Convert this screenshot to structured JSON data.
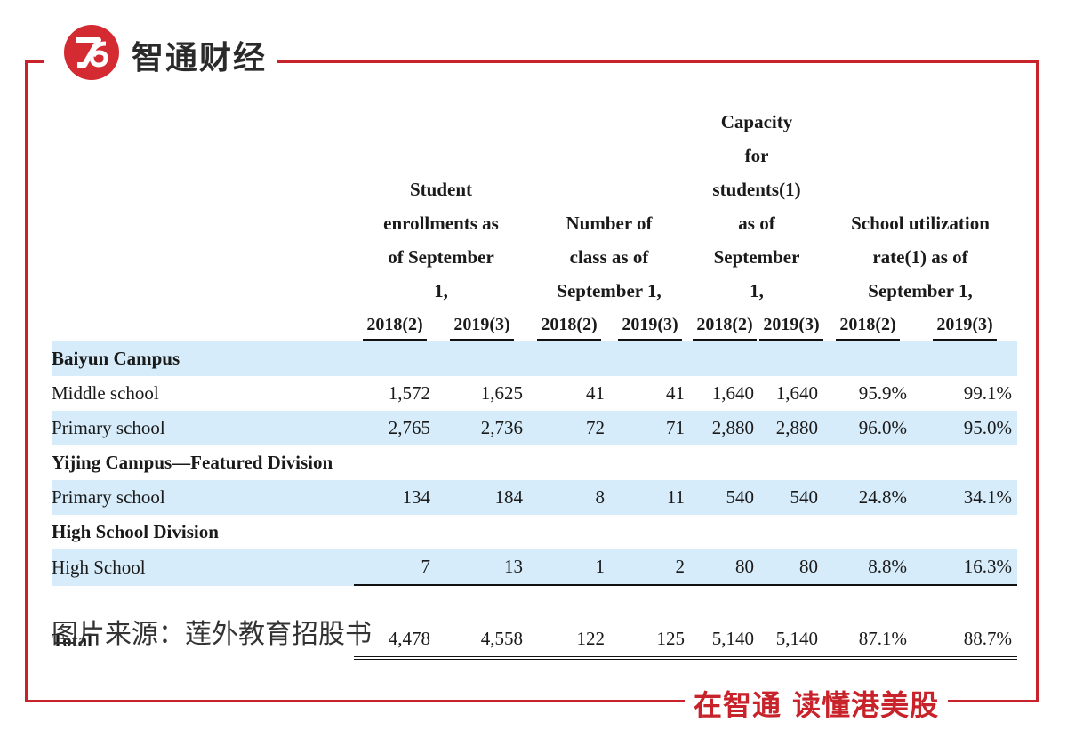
{
  "brand": {
    "logo_text": "Z",
    "name": "智通财经"
  },
  "table": {
    "headers": {
      "col_label": "",
      "groups": [
        {
          "label": "Student enrollments as of September 1,",
          "years": [
            "2018(2)",
            "2019(3)"
          ]
        },
        {
          "label": "Number of class as of September 1,",
          "years": [
            "2018(2)",
            "2019(3)"
          ]
        },
        {
          "label": "Capacity for students(1) as of September 1,",
          "years": [
            "2018(2)",
            "2019(3)"
          ]
        },
        {
          "label": "School utilization rate(1) as of September 1,",
          "years": [
            "2018(2)",
            "2019(3)"
          ]
        }
      ]
    },
    "sections": [
      {
        "title": "Baiyun Campus",
        "rows": [
          {
            "label": "Middle school",
            "values": [
              "1,572",
              "1,625",
              "41",
              "41",
              "1,640",
              "1,640",
              "95.9%",
              "99.1%"
            ]
          },
          {
            "label": "Primary school",
            "values": [
              "2,765",
              "2,736",
              "72",
              "71",
              "2,880",
              "2,880",
              "96.0%",
              "95.0%"
            ]
          }
        ]
      },
      {
        "title": "Yijing Campus—Featured Division",
        "rows": [
          {
            "label": "Primary school",
            "values": [
              "134",
              "184",
              "8",
              "11",
              "540",
              "540",
              "24.8%",
              "34.1%"
            ]
          }
        ]
      },
      {
        "title": "High School Division",
        "rows": [
          {
            "label": "High School",
            "values": [
              "7",
              "13",
              "1",
              "2",
              "80",
              "80",
              "8.8%",
              "16.3%"
            ]
          }
        ]
      }
    ],
    "total": {
      "label": "Total",
      "values": [
        "4,478",
        "4,558",
        "122",
        "125",
        "5,140",
        "5,140",
        "87.1%",
        "88.7%"
      ]
    }
  },
  "source_note": "图片来源：莲外教育招股书",
  "slogan": "在智通  读懂港美股",
  "colors": {
    "accent": "#c8232b",
    "row_highlight": "#d6ecfa"
  }
}
